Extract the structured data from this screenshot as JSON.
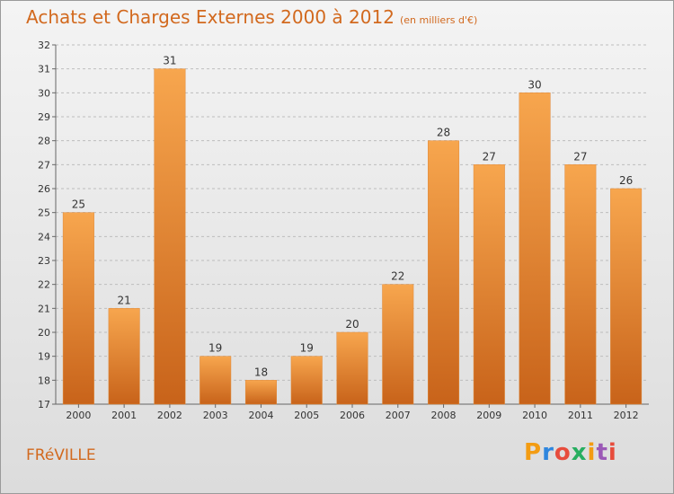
{
  "title": "Achats et Charges Externes 2000 à 2012",
  "subtitle": "(en milliers d'€)",
  "place": "FRéVILLE",
  "brand": {
    "text": "Proxiti",
    "colors": [
      "#f39c12",
      "#2e86de",
      "#e74c3c",
      "#27ae60",
      "#f39c12",
      "#9b59b6",
      "#e74c3c"
    ]
  },
  "chart_data": {
    "type": "bar",
    "categories": [
      "2000",
      "2001",
      "2002",
      "2003",
      "2004",
      "2005",
      "2006",
      "2007",
      "2008",
      "2009",
      "2010",
      "2011",
      "2012"
    ],
    "values": [
      25,
      21,
      31,
      19,
      18,
      19,
      20,
      22,
      28,
      27,
      30,
      27,
      26
    ],
    "ylim": [
      17,
      32
    ],
    "yticks": [
      17,
      18,
      19,
      20,
      21,
      22,
      23,
      24,
      25,
      26,
      27,
      28,
      29,
      30,
      31,
      32
    ],
    "grid": true,
    "colors": {
      "bar_light": "#f7a64e",
      "bar_dark": "#c8631a",
      "grid": "#bdbdbd"
    }
  }
}
